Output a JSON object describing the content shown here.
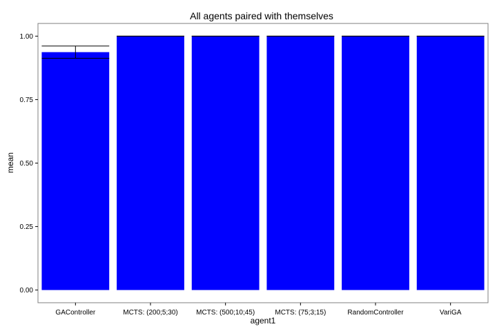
{
  "chart_data": {
    "type": "bar",
    "title": "All agents paired with themselves",
    "xlabel": "agent1",
    "ylabel": "mean",
    "categories": [
      "GAController",
      "MCTS: (200;5;30)",
      "MCTS: (500;10;45)",
      "MCTS: (75;3;15)",
      "RandomController",
      "VariGA"
    ],
    "values": [
      0.937,
      1.0,
      1.0,
      1.0,
      1.0,
      1.0
    ],
    "error_bars": [
      {
        "category": "GAController",
        "low": 0.913,
        "high": 0.961
      },
      {
        "category": "MCTS: (200;5;30)",
        "low": 1.0,
        "high": 1.0
      },
      {
        "category": "MCTS: (500;10;45)",
        "low": 1.0,
        "high": 1.0
      },
      {
        "category": "MCTS: (75;3;15)",
        "low": 1.0,
        "high": 1.0
      },
      {
        "category": "RandomController",
        "low": 1.0,
        "high": 1.0
      },
      {
        "category": "VariGA",
        "low": 1.0,
        "high": 1.0
      }
    ],
    "y_ticks": [
      "0.00",
      "0.25",
      "0.50",
      "0.75",
      "1.00"
    ],
    "ylim": [
      -0.05,
      1.05
    ],
    "grid": false,
    "bar_color": "#0000ff",
    "error_bar_color": "#000000",
    "frame_color": "#7f7f7f"
  }
}
